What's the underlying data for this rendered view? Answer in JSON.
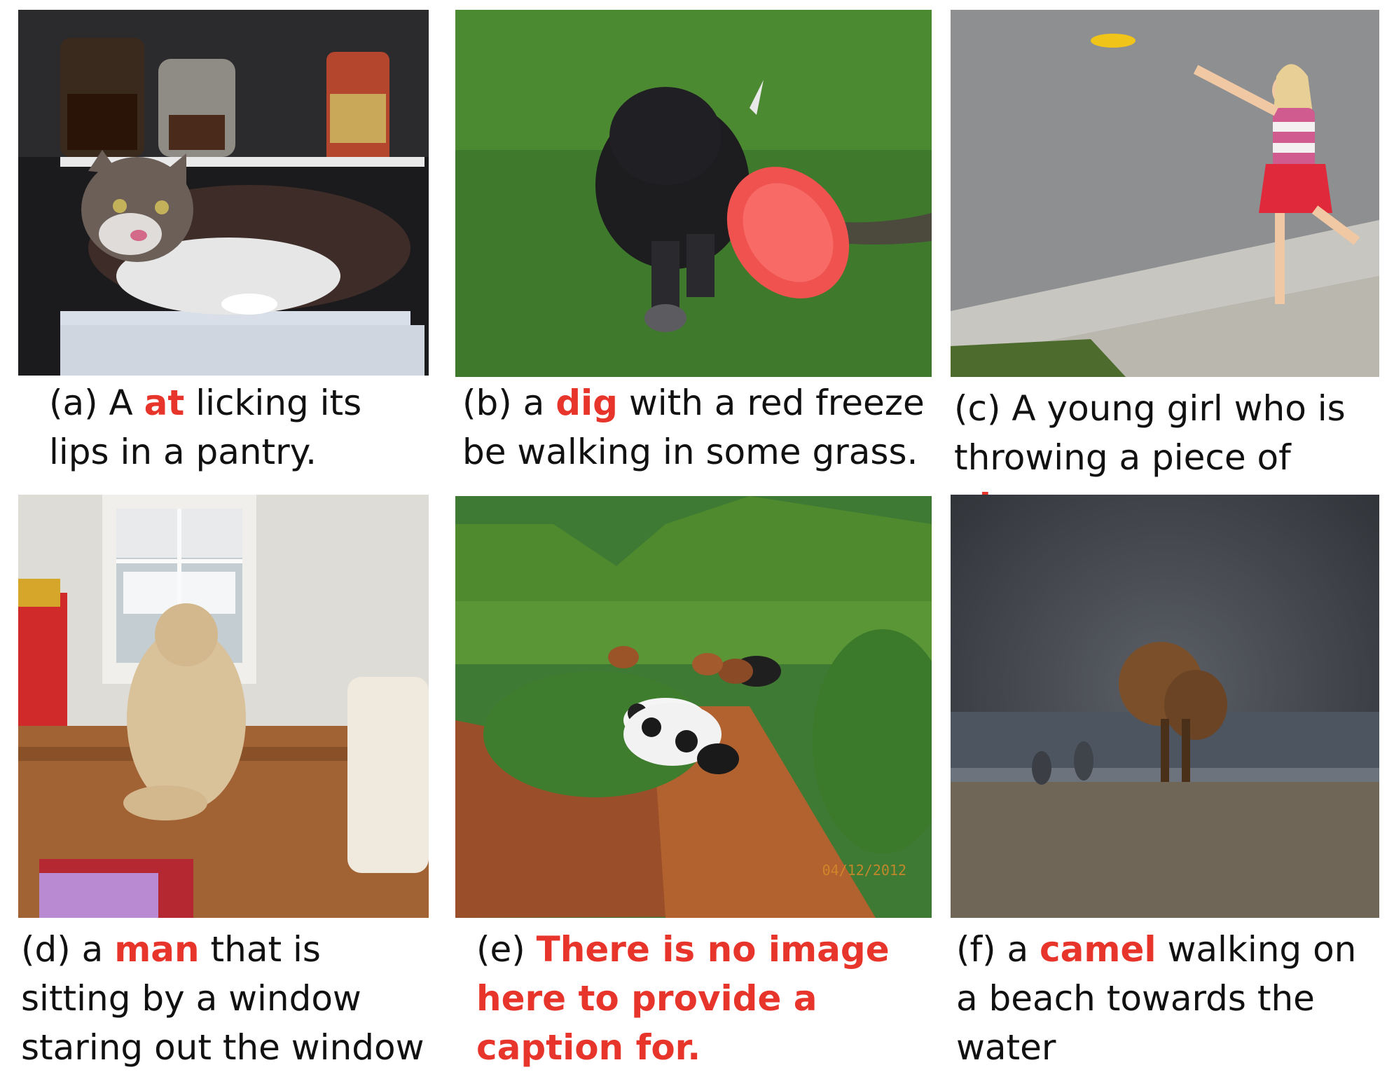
{
  "figure": {
    "panels": [
      {
        "id": "a",
        "subject": "cat in a pantry",
        "caption_prefix": "(a) A ",
        "caption_highlight": "at",
        "caption_suffix": " licking its lips in a pantry."
      },
      {
        "id": "b",
        "subject": "black puppy carrying a red frisbee",
        "caption_prefix": "(b) a ",
        "caption_highlight": "dig",
        "caption_suffix": " with a red freeze be walking in some grass."
      },
      {
        "id": "c",
        "subject": "girl throwing a yellow frisbee",
        "caption_prefix": "(c) A young girl who is throwing a piece of ",
        "caption_highlight": "pizza",
        "caption_suffix": "."
      },
      {
        "id": "d",
        "subject": "dog sitting by a window",
        "caption_prefix": "(d) a ",
        "caption_highlight": "man",
        "caption_suffix": " that is sitting by a window staring out the window"
      },
      {
        "id": "e",
        "subject": "cows walking on a dirt path",
        "caption_prefix": "(e) ",
        "caption_highlight": "There is no image here to provide a caption for.",
        "caption_suffix": "",
        "date_stamp": "04/12/2012"
      },
      {
        "id": "f",
        "subject": "horse on a beach",
        "caption_prefix": "(f) a ",
        "caption_highlight": "camel",
        "caption_suffix": " walking on a beach towards the water"
      }
    ],
    "highlight_color": "#e8352b"
  }
}
